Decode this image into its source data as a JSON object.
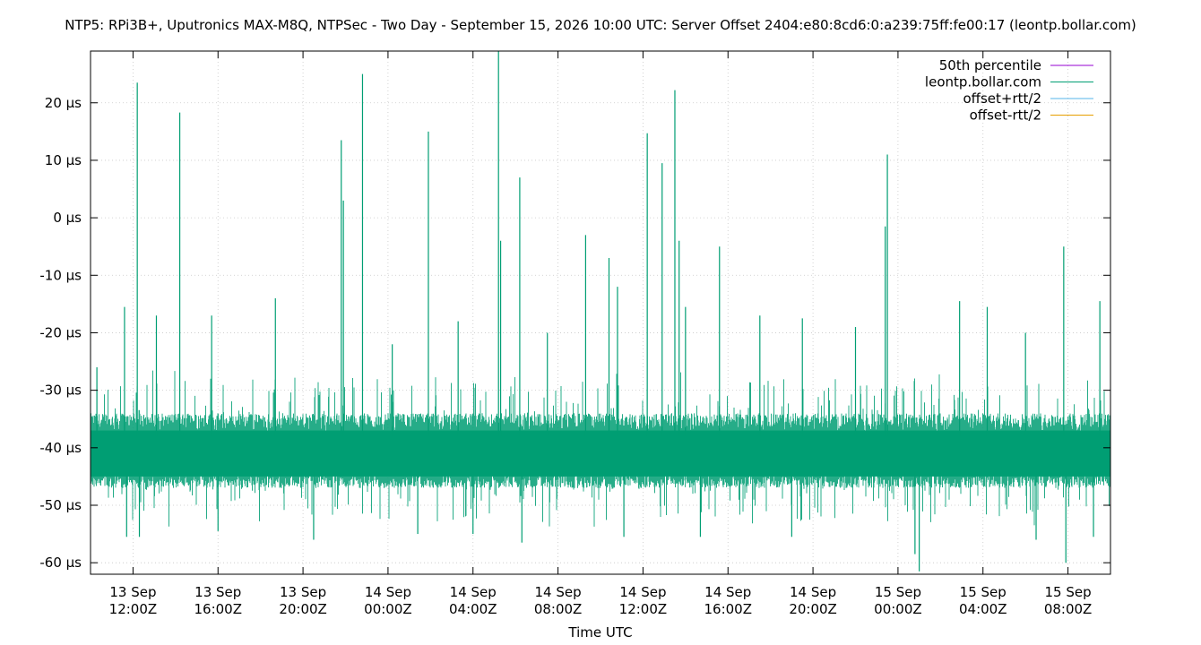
{
  "chart_data": {
    "type": "line",
    "title": "NTP5: RPi3B+, Uputronics MAX-M8Q, NTPSec - Two Day - September 15, 2026 10:00 UTC: Server Offset 2404:e80:8cd6:0:a239:75ff:fe00:17 (leontp.bollar.com)",
    "xlabel": "Time UTC",
    "ylabel": "",
    "x_unit": "hours",
    "xlim": [
      -2,
      46
    ],
    "ylim": [
      -62,
      29
    ],
    "y_ticks": [
      {
        "value": 20,
        "label": "20 µs"
      },
      {
        "value": 10,
        "label": "10 µs"
      },
      {
        "value": 0,
        "label": "0 µs"
      },
      {
        "value": -10,
        "label": "-10 µs"
      },
      {
        "value": -20,
        "label": "-20 µs"
      },
      {
        "value": -30,
        "label": "-30 µs"
      },
      {
        "value": -40,
        "label": "-40 µs"
      },
      {
        "value": -50,
        "label": "-50 µs"
      },
      {
        "value": -60,
        "label": "-60 µs"
      }
    ],
    "x_ticks": [
      {
        "value": 0,
        "line1": "13 Sep",
        "line2": "12:00Z"
      },
      {
        "value": 4,
        "line1": "13 Sep",
        "line2": "16:00Z"
      },
      {
        "value": 8,
        "line1": "13 Sep",
        "line2": "20:00Z"
      },
      {
        "value": 12,
        "line1": "14 Sep",
        "line2": "00:00Z"
      },
      {
        "value": 16,
        "line1": "14 Sep",
        "line2": "04:00Z"
      },
      {
        "value": 20,
        "line1": "14 Sep",
        "line2": "08:00Z"
      },
      {
        "value": 24,
        "line1": "14 Sep",
        "line2": "12:00Z"
      },
      {
        "value": 28,
        "line1": "14 Sep",
        "line2": "16:00Z"
      },
      {
        "value": 32,
        "line1": "14 Sep",
        "line2": "20:00Z"
      },
      {
        "value": 36,
        "line1": "15 Sep",
        "line2": "00:00Z"
      },
      {
        "value": 40,
        "line1": "15 Sep",
        "line2": "04:00Z"
      },
      {
        "value": 44,
        "line1": "15 Sep",
        "line2": "08:00Z"
      }
    ],
    "grid": true,
    "legend_position": "top-right",
    "series": [
      {
        "name": "50th percentile",
        "color": "#9400d3",
        "values": []
      },
      {
        "name": "leontp.bollar.com",
        "color": "#009e73",
        "median": -41,
        "band_upper": -34,
        "band_lower": -47,
        "whisker_upper": -26,
        "whisker_lower": -54,
        "spikes": [
          {
            "x": 0.2,
            "y": 23.5
          },
          {
            "x": 2.2,
            "y": 18.3
          },
          {
            "x": 8.4,
            "y": -37.5
          },
          {
            "x": 9.8,
            "y": 13.5
          },
          {
            "x": 9.9,
            "y": 3
          },
          {
            "x": 10.8,
            "y": 25
          },
          {
            "x": 13.9,
            "y": 15
          },
          {
            "x": 17.2,
            "y": 29
          },
          {
            "x": 17.3,
            "y": -4
          },
          {
            "x": 18.2,
            "y": 7
          },
          {
            "x": 21.3,
            "y": -3
          },
          {
            "x": 22.4,
            "y": -7
          },
          {
            "x": 24.2,
            "y": 14.7
          },
          {
            "x": 24.9,
            "y": 9.5
          },
          {
            "x": 25.5,
            "y": 22.2
          },
          {
            "x": 25.7,
            "y": -4
          },
          {
            "x": 27.6,
            "y": -5
          },
          {
            "x": 35.4,
            "y": -1.5
          },
          {
            "x": 35.5,
            "y": 11
          },
          {
            "x": 37.0,
            "y": -61.5
          },
          {
            "x": 43.8,
            "y": -5
          },
          {
            "x": 43.9,
            "y": -60
          },
          {
            "x": -1.7,
            "y": -26
          },
          {
            "x": -0.4,
            "y": -15.5
          },
          {
            "x": 1.1,
            "y": -17
          },
          {
            "x": 3.7,
            "y": -17
          },
          {
            "x": 6.7,
            "y": -14
          },
          {
            "x": 12.2,
            "y": -22
          },
          {
            "x": 15.3,
            "y": -18
          },
          {
            "x": 19.5,
            "y": -20
          },
          {
            "x": 22.8,
            "y": -12
          },
          {
            "x": 26.0,
            "y": -15.5
          },
          {
            "x": 29.5,
            "y": -17
          },
          {
            "x": 31.5,
            "y": -17.5
          },
          {
            "x": 34.0,
            "y": -19
          },
          {
            "x": 38.9,
            "y": -14.5
          },
          {
            "x": 40.2,
            "y": -15.5
          },
          {
            "x": 42.0,
            "y": -20
          },
          {
            "x": 45.5,
            "y": -14.5
          },
          {
            "x": -0.3,
            "y": -55.5
          },
          {
            "x": 0.3,
            "y": -55.5
          },
          {
            "x": 4.0,
            "y": -54.5
          },
          {
            "x": 8.5,
            "y": -56
          },
          {
            "x": 13.4,
            "y": -55
          },
          {
            "x": 16.0,
            "y": -55
          },
          {
            "x": 18.3,
            "y": -56.5
          },
          {
            "x": 23.1,
            "y": -55.5
          },
          {
            "x": 26.7,
            "y": -55.5
          },
          {
            "x": 31.0,
            "y": -55.5
          },
          {
            "x": 36.8,
            "y": -58.5
          },
          {
            "x": 42.5,
            "y": -56
          },
          {
            "x": 45.2,
            "y": -55.5
          }
        ]
      },
      {
        "name": "offset+rtt/2",
        "color": "#56b4e9",
        "values": []
      },
      {
        "name": "offset-rtt/2",
        "color": "#e69f00",
        "values": []
      }
    ]
  }
}
